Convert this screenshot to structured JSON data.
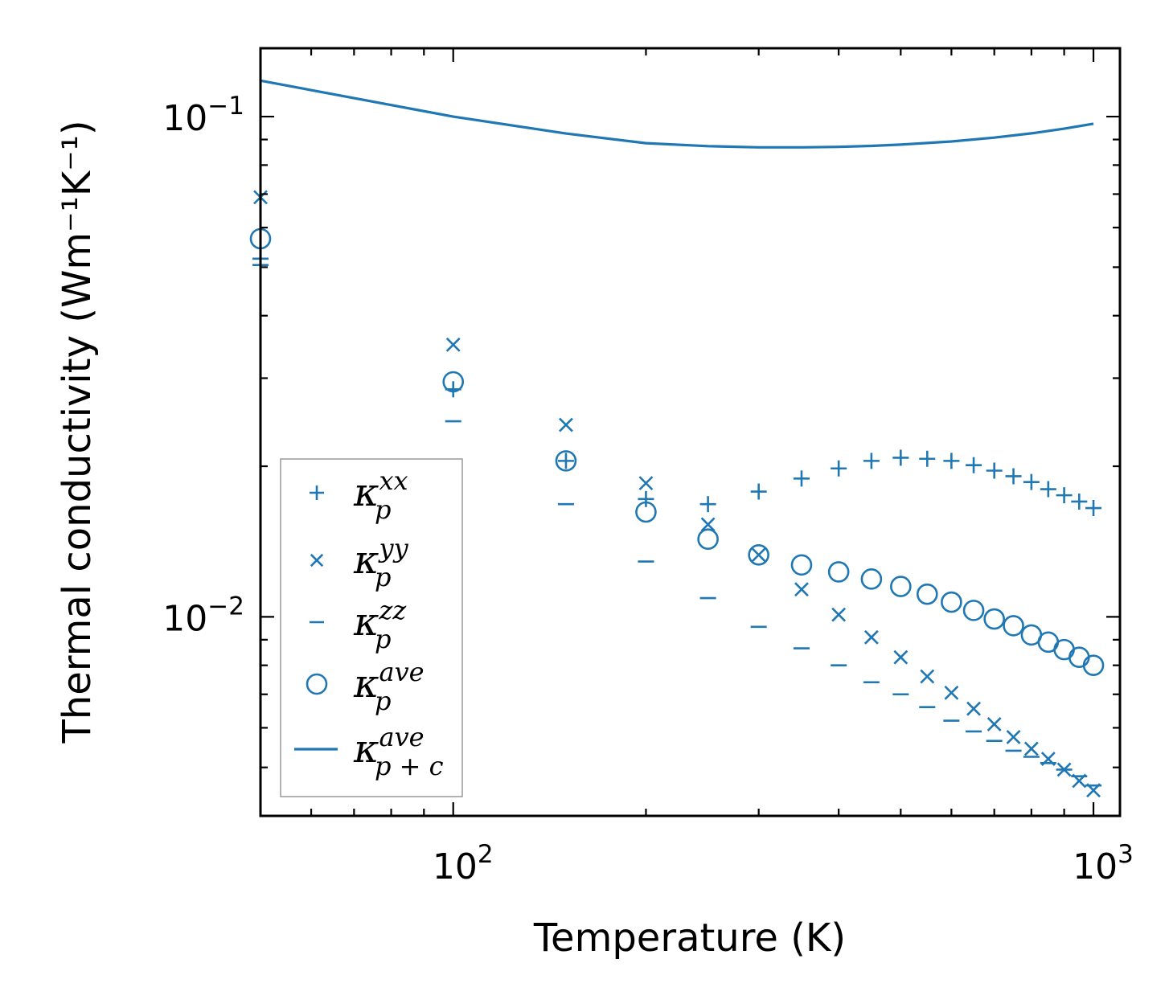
{
  "chart_data": {
    "type": "scatter",
    "xscale": "log",
    "yscale": "log",
    "xlabel": "Temperature (K)",
    "ylabel": "Thermal conductivity (Wm⁻¹K⁻¹)",
    "xlim": [
      50,
      1100
    ],
    "ylim": [
      0.004,
      0.137
    ],
    "xticks": [
      {
        "base": "10",
        "exp": "2",
        "value": 100
      },
      {
        "base": "10",
        "exp": "3",
        "value": 1000
      }
    ],
    "yticks": [
      {
        "base": "10",
        "exp": "−2",
        "value": 0.01
      },
      {
        "base": "10",
        "exp": "−1",
        "value": 0.1
      }
    ],
    "color": "#1f77b4",
    "legend_position": "lower-left",
    "series": [
      {
        "name": "kappa_p^xx",
        "label_base": "κ",
        "label_sub": "p",
        "label_sup": "xx",
        "marker": "plus",
        "x": [
          50,
          100,
          150,
          200,
          250,
          300,
          350,
          400,
          450,
          500,
          550,
          600,
          650,
          700,
          750,
          800,
          850,
          900,
          950,
          1000
        ],
        "y": [
          0.052,
          0.0285,
          0.0205,
          0.0172,
          0.0168,
          0.0178,
          0.0189,
          0.0198,
          0.0205,
          0.0208,
          0.0207,
          0.0205,
          0.0201,
          0.0196,
          0.0191,
          0.0186,
          0.018,
          0.0175,
          0.017,
          0.0165
        ]
      },
      {
        "name": "kappa_p^yy",
        "label_base": "κ",
        "label_sub": "p",
        "label_sup": "yy",
        "marker": "x",
        "x": [
          50,
          100,
          150,
          200,
          250,
          300,
          350,
          400,
          450,
          500,
          550,
          600,
          650,
          700,
          750,
          800,
          850,
          900,
          950,
          1000
        ],
        "y": [
          0.069,
          0.035,
          0.0242,
          0.0185,
          0.0153,
          0.0133,
          0.01135,
          0.0101,
          0.0091,
          0.0083,
          0.0076,
          0.00705,
          0.00655,
          0.0061,
          0.00575,
          0.00545,
          0.0052,
          0.00495,
          0.0047,
          0.0045
        ]
      },
      {
        "name": "kappa_p^zz",
        "label_base": "κ",
        "label_sub": "p",
        "label_sup": "zz",
        "marker": "dash",
        "x": [
          50,
          100,
          150,
          200,
          250,
          300,
          350,
          400,
          450,
          500,
          550,
          600,
          650,
          700,
          750,
          800,
          850,
          900,
          950,
          1000
        ],
        "y": [
          0.0505,
          0.0246,
          0.0168,
          0.0129,
          0.0109,
          0.00955,
          0.00865,
          0.008,
          0.0074,
          0.007,
          0.0066,
          0.0062,
          0.0059,
          0.00565,
          0.0054,
          0.00525,
          0.0051,
          0.00495,
          0.0048,
          0.0046
        ]
      },
      {
        "name": "kappa_p^ave",
        "label_base": "κ",
        "label_sub": "p",
        "label_sup": "ave",
        "marker": "circle",
        "x": [
          50,
          100,
          150,
          200,
          250,
          300,
          350,
          400,
          450,
          500,
          550,
          600,
          650,
          700,
          750,
          800,
          850,
          900,
          950,
          1000
        ],
        "y": [
          0.057,
          0.0295,
          0.0205,
          0.0162,
          0.0143,
          0.0133,
          0.0127,
          0.0123,
          0.0119,
          0.0115,
          0.0111,
          0.0107,
          0.0103,
          0.0099,
          0.0096,
          0.0092,
          0.0089,
          0.0086,
          0.0083,
          0.008
        ]
      },
      {
        "name": "kappa_p+c^ave",
        "label_base": "κ",
        "label_sub": "p + c",
        "label_sup": "ave",
        "marker": "line",
        "x": [
          50,
          100,
          150,
          200,
          250,
          300,
          350,
          400,
          450,
          500,
          600,
          700,
          800,
          900,
          1000
        ],
        "y": [
          0.118,
          0.1,
          0.0925,
          0.0885,
          0.0873,
          0.0868,
          0.0868,
          0.087,
          0.0874,
          0.0879,
          0.0892,
          0.0908,
          0.0926,
          0.0946,
          0.0968
        ]
      }
    ]
  }
}
